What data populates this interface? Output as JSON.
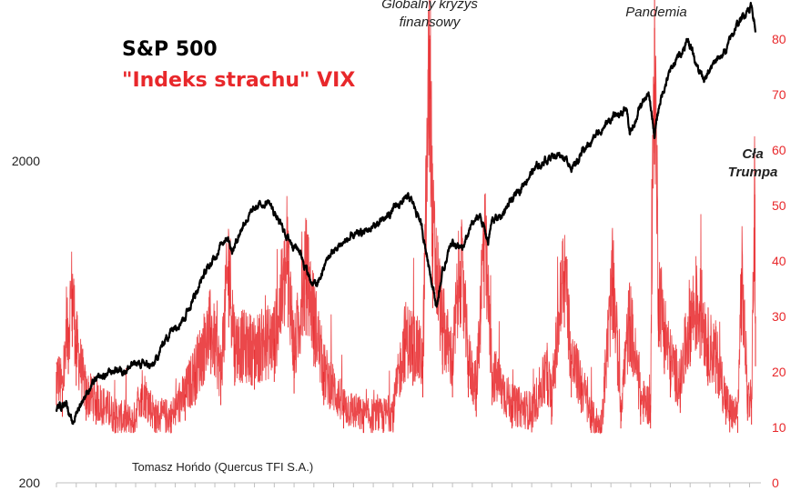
{
  "chart_data": {
    "type": "line",
    "legend": {
      "sp500": "S&P 500",
      "vix": "\"Indeks strachu\" VIX"
    },
    "colors": {
      "sp500": "#000000",
      "vix": "#e8282b"
    },
    "left_axis": {
      "scale": "log",
      "ticks": [
        "200",
        "2000"
      ],
      "range": [
        200,
        5700
      ]
    },
    "right_axis": {
      "ticks": [
        "0",
        "10",
        "20",
        "30",
        "40",
        "50",
        "60",
        "70",
        "80"
      ],
      "range": [
        0,
        88
      ]
    },
    "annotations": {
      "gfc": [
        "Globalny kryzys",
        "finansowy"
      ],
      "pandemia": "Pandemia",
      "trump": [
        "Cła",
        "Trumpa"
      ]
    },
    "credit": "Tomasz Hońdo (Quercus TFI S.A.)",
    "series": [
      {
        "name": "S&P 500",
        "x": [
          1990.0,
          1990.5,
          1990.8,
          1991.0,
          1991.5,
          1992.0,
          1993.0,
          1993.5,
          1994.0,
          1994.9,
          1995.5,
          1996.0,
          1996.5,
          1997.0,
          1997.5,
          1997.8,
          1998.3,
          1998.6,
          1998.9,
          1999.5,
          2000.2,
          2000.7,
          2001.2,
          2001.7,
          2002.3,
          2002.8,
          2003.2,
          2003.7,
          2004.5,
          2005.5,
          2006.5,
          2007.2,
          2007.8,
          2008.3,
          2008.8,
          2009.2,
          2009.5,
          2010.0,
          2010.5,
          2011.0,
          2011.4,
          2011.8,
          2012.0,
          2012.5,
          2013.0,
          2014.0,
          2015.0,
          2015.5,
          2016.1,
          2016.5,
          2017.0,
          2018.0,
          2018.8,
          2018.95,
          2019.5,
          2019.9,
          2020.2,
          2020.5,
          2021.0,
          2021.9,
          2022.4,
          2022.8,
          2023.2,
          2023.8,
          2024.3,
          2024.9,
          2025.1,
          2025.3
        ],
        "values": [
          340,
          360,
          300,
          330,
          380,
          415,
          450,
          450,
          470,
          460,
          560,
          620,
          660,
          770,
          900,
          950,
          1100,
          1180,
          1050,
          1300,
          1450,
          1500,
          1300,
          1150,
          1050,
          850,
          820,
          1000,
          1120,
          1200,
          1300,
          1450,
          1540,
          1350,
          950,
          700,
          900,
          1130,
          1050,
          1280,
          1350,
          1120,
          1300,
          1360,
          1500,
          1850,
          2080,
          2100,
          1900,
          2100,
          2300,
          2700,
          2900,
          2400,
          2950,
          3200,
          2400,
          3100,
          3800,
          4750,
          3900,
          3600,
          4000,
          4400,
          5200,
          5900,
          6100,
          5100
        ]
      },
      {
        "name": "\"Indeks strachu\" VIX",
        "x": [
          1990.0,
          1990.3,
          1990.6,
          1990.8,
          1991.0,
          1991.5,
          1992.0,
          1993.0,
          1993.9,
          1994.3,
          1995.0,
          1995.8,
          1996.5,
          1997.0,
          1997.8,
          1998.3,
          1998.7,
          1999.0,
          2000.0,
          2001.0,
          2001.7,
          2002.0,
          2002.6,
          2003.0,
          2003.5,
          2004.5,
          2005.5,
          2006.5,
          2007.0,
          2007.6,
          2008.0,
          2008.5,
          2008.85,
          2009.0,
          2009.5,
          2010.0,
          2010.4,
          2010.8,
          2011.2,
          2011.6,
          2012.0,
          2013.0,
          2014.0,
          2014.8,
          2015.0,
          2015.65,
          2016.0,
          2016.5,
          2017.0,
          2017.5,
          2018.1,
          2018.5,
          2018.95,
          2019.5,
          2020.0,
          2020.2,
          2020.4,
          2020.7,
          2021.0,
          2021.5,
          2022.0,
          2022.5,
          2022.9,
          2023.3,
          2023.8,
          2024.0,
          2024.4,
          2024.6,
          2024.9,
          2025.1,
          2025.26,
          2025.3
        ],
        "values": [
          20,
          17,
          28,
          35,
          25,
          16,
          15,
          12,
          11,
          17,
          12,
          12,
          16,
          20,
          28,
          20,
          40,
          25,
          24,
          26,
          40,
          23,
          38,
          30,
          20,
          14,
          12,
          12,
          13,
          26,
          25,
          22,
          80,
          45,
          28,
          22,
          40,
          22,
          17,
          45,
          20,
          14,
          13,
          20,
          15,
          40,
          22,
          18,
          12,
          10,
          37,
          14,
          30,
          15,
          14,
          82,
          35,
          28,
          22,
          18,
          30,
          32,
          25,
          23,
          15,
          13,
          12,
          38,
          16,
          15,
          52,
          30
        ]
      }
    ]
  }
}
